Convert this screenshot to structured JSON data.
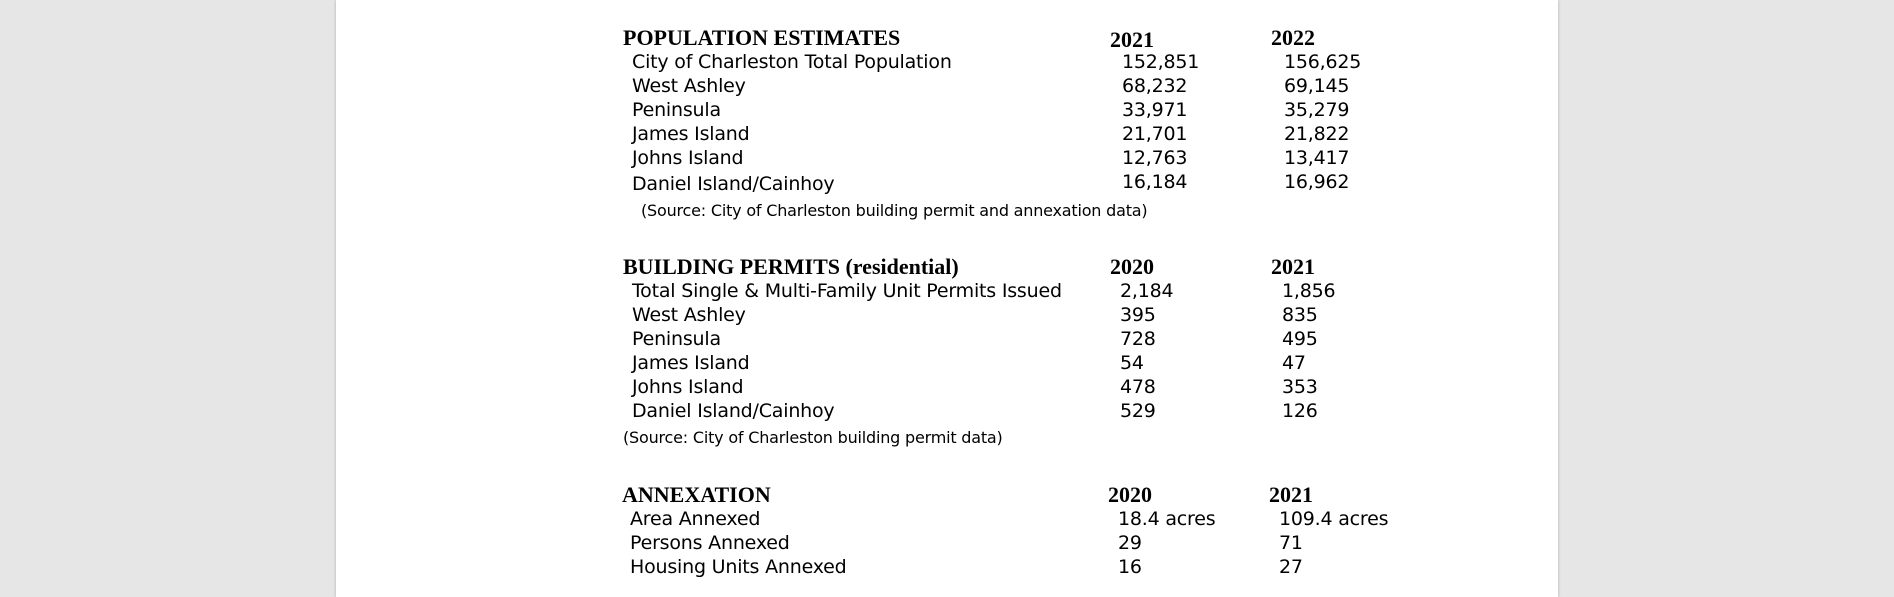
{
  "population": {
    "title": "POPULATION ESTIMATES",
    "col1": "2021",
    "col2": "2022",
    "rows": [
      {
        "label": "City of Charleston Total Population",
        "v1": "152,851",
        "v2": "156,625"
      },
      {
        "label": "West Ashley",
        "v1": "68,232",
        "v2": "69,145"
      },
      {
        "label": "Peninsula",
        "v1": "33,971",
        "v2": "35,279"
      },
      {
        "label": "James Island",
        "v1": "21,701",
        "v2": "21,822"
      },
      {
        "label": "Johns Island",
        "v1": "12,763",
        "v2": "13,417"
      },
      {
        "label": "Daniel Island/Cainhoy",
        "v1": "16,184",
        "v2": "16,962"
      }
    ],
    "source": "(Source:  City of Charleston building permit and annexation data)"
  },
  "permits": {
    "title": "BUILDING PERMITS (residential)",
    "col1": "2020",
    "col2": "2021",
    "rows": [
      {
        "label": "Total Single & Multi-Family Unit Permits Issued",
        "v1": "2,184",
        "v2": "1,856"
      },
      {
        "label": "West Ashley",
        "v1": "395",
        "v2": "835"
      },
      {
        "label": "Peninsula",
        "v1": "728",
        "v2": "495"
      },
      {
        "label": "James Island",
        "v1": "54",
        "v2": "47"
      },
      {
        "label": "Johns Island",
        "v1": "478",
        "v2": "353"
      },
      {
        "label": "Daniel Island/Cainhoy",
        "v1": "529",
        "v2": "126"
      }
    ],
    "source": "(Source:  City of Charleston building permit data)"
  },
  "annexation": {
    "title": "ANNEXATION",
    "col1": "2020",
    "col2": "2021",
    "rows": [
      {
        "label": "Area Annexed",
        "v1": "18.4 acres",
        "v2": "109.4 acres"
      },
      {
        "label": "Persons Annexed",
        "v1": "29",
        "v2": "71"
      },
      {
        "label": "Housing Units Annexed",
        "v1": "16",
        "v2": "27"
      }
    ]
  }
}
